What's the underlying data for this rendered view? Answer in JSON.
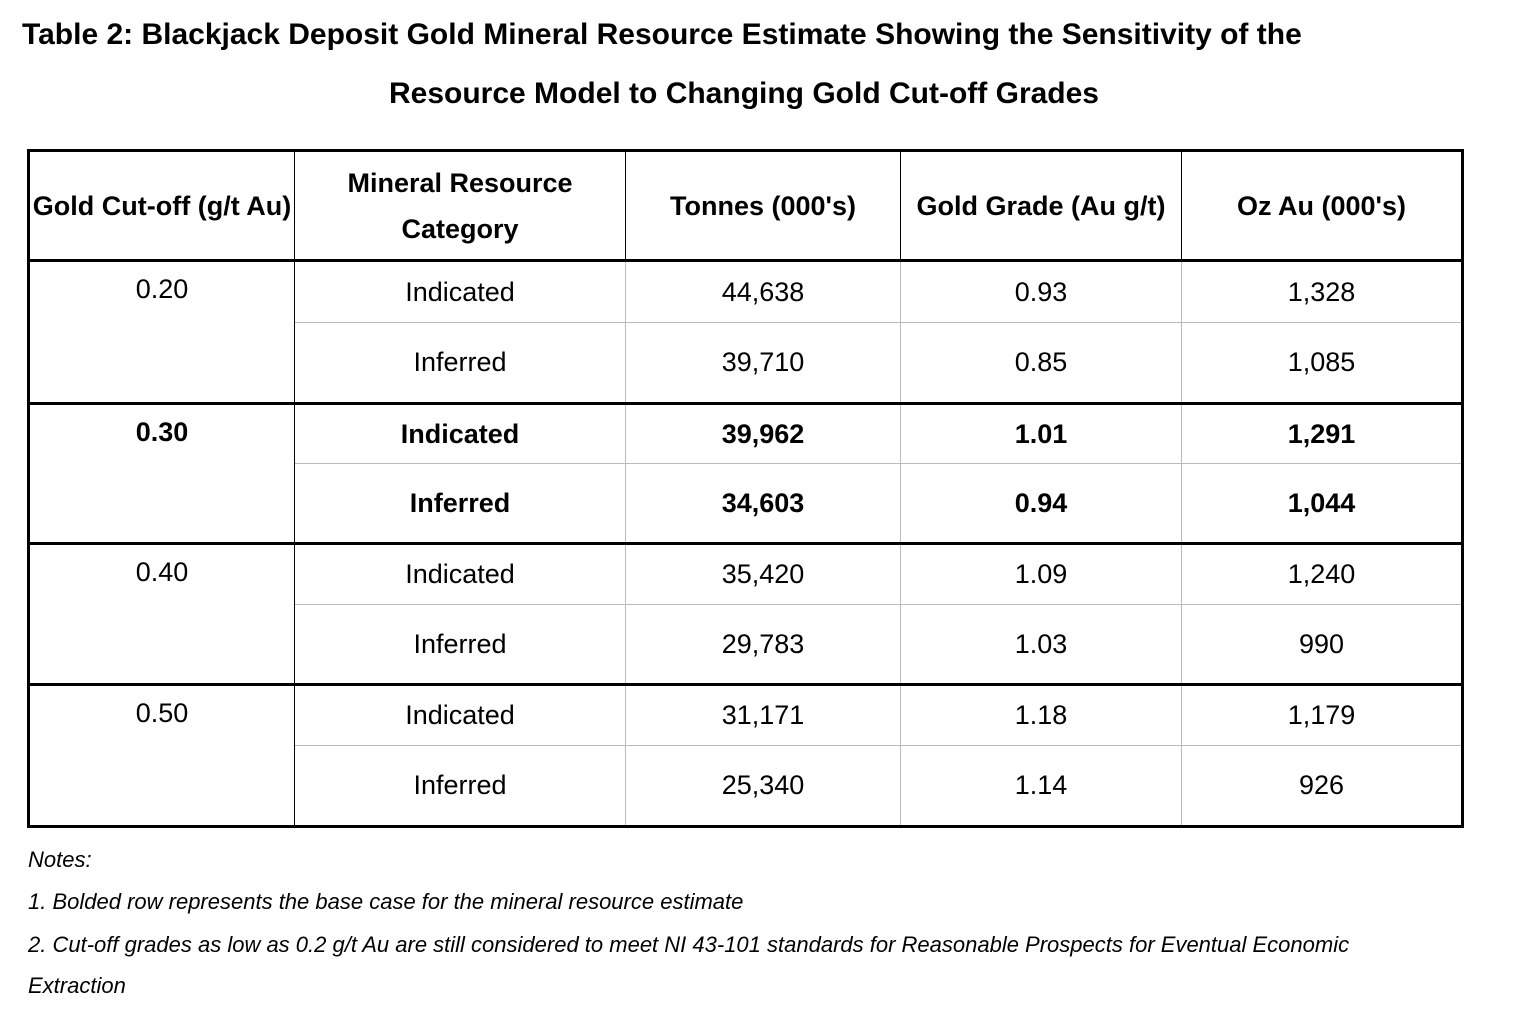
{
  "title": {
    "line1": "Table 2:  Blackjack Deposit Gold Mineral Resource Estimate Showing the Sensitivity of the",
    "line2": "Resource Model to Changing Gold Cut-off Grades"
  },
  "table": {
    "headers": [
      "Gold Cut-off (g/t Au)",
      "Mineral Resource Category",
      "Tonnes (000's)",
      "Gold Grade (Au g/t)",
      "Oz Au (000's)"
    ],
    "groups": [
      {
        "cutoff": "0.20",
        "bold": false,
        "rows": [
          {
            "category": "Indicated",
            "tonnes": "44,638",
            "grade": "0.93",
            "oz": "1,328"
          },
          {
            "category": "Inferred",
            "tonnes": "39,710",
            "grade": "0.85",
            "oz": "1,085"
          }
        ]
      },
      {
        "cutoff": "0.30",
        "bold": true,
        "rows": [
          {
            "category": "Indicated",
            "tonnes": "39,962",
            "grade": "1.01",
            "oz": "1,291"
          },
          {
            "category": "Inferred",
            "tonnes": "34,603",
            "grade": "0.94",
            "oz": "1,044"
          }
        ]
      },
      {
        "cutoff": "0.40",
        "bold": false,
        "rows": [
          {
            "category": "Indicated",
            "tonnes": "35,420",
            "grade": "1.09",
            "oz": "1,240"
          },
          {
            "category": "Inferred",
            "tonnes": "29,783",
            "grade": "1.03",
            "oz": "990"
          }
        ]
      },
      {
        "cutoff": "0.50",
        "bold": false,
        "rows": [
          {
            "category": "Indicated",
            "tonnes": "31,171",
            "grade": "1.18",
            "oz": "1,179"
          },
          {
            "category": "Inferred",
            "tonnes": "25,340",
            "grade": "1.14",
            "oz": "926"
          }
        ]
      }
    ]
  },
  "notes": {
    "heading": "Notes:",
    "items": [
      "1. Bolded row represents the base case for the mineral resource estimate",
      "2. Cut-off grades as low as 0.2 g/t Au are still considered to meet NI 43-101 standards for Reasonable Prospects for Eventual Economic",
      "Extraction"
    ]
  }
}
